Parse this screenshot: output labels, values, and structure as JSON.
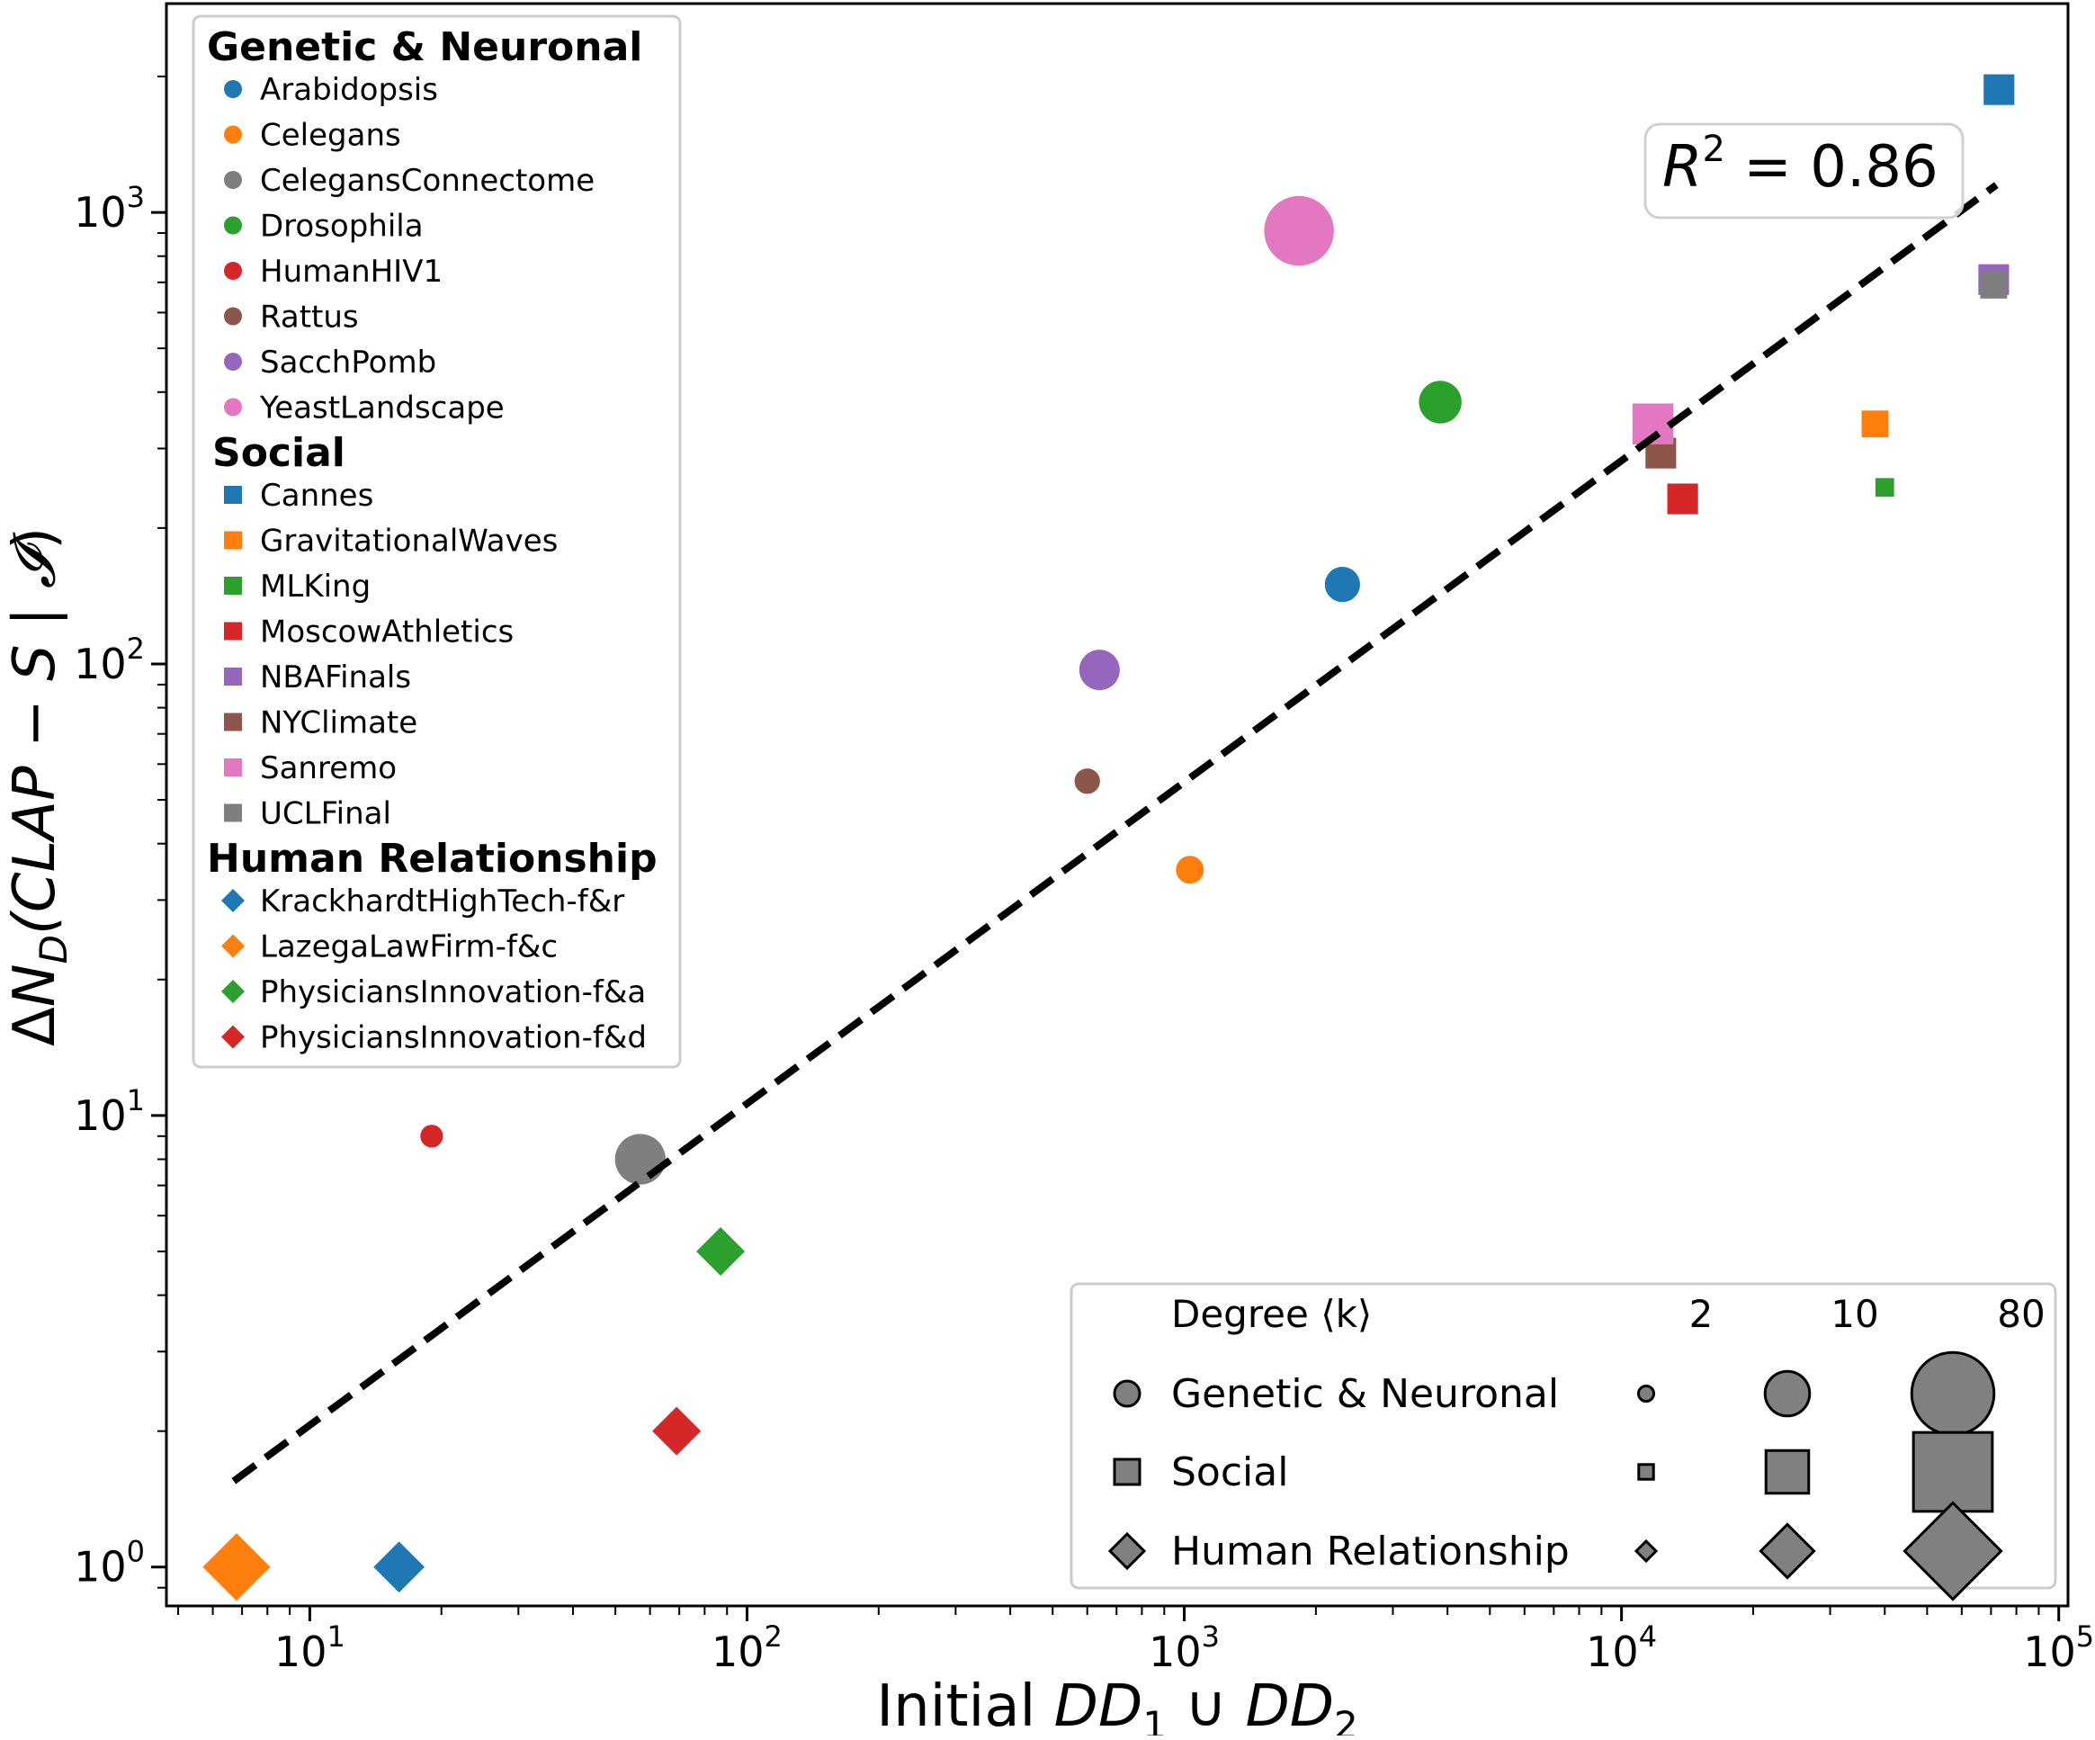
{
  "chart_data": {
    "type": "scatter",
    "xscale": "log",
    "yscale": "log",
    "xlim": [
      4.7,
      105000
    ],
    "ylim": [
      0.82,
      2900
    ],
    "xticks": [
      {
        "value": 10,
        "base": "10",
        "exp": "1"
      },
      {
        "value": 100,
        "base": "10",
        "exp": "2"
      },
      {
        "value": 1000,
        "base": "10",
        "exp": "3"
      },
      {
        "value": 10000,
        "base": "10",
        "exp": "4"
      },
      {
        "value": 100000,
        "base": "10",
        "exp": "5"
      }
    ],
    "yticks": [
      {
        "value": 1,
        "base": "10",
        "exp": "0"
      },
      {
        "value": 10,
        "base": "10",
        "exp": "1"
      },
      {
        "value": 100,
        "base": "10",
        "exp": "2"
      },
      {
        "value": 1000,
        "base": "10",
        "exp": "3"
      }
    ],
    "xlabel": {
      "pre": "Initial ",
      "a": "DD",
      "a_sub": "1",
      "mid": " ∪ ",
      "b": "DD",
      "b_sub": "2"
    },
    "ylabel": {
      "pre": "Δ",
      "n": "N",
      "n_sub": "D",
      "rest": "(CLAP − S | ",
      "cal": "𝓘",
      "close": ")"
    },
    "fit_line": {
      "x": [
        6.7,
        72000
      ],
      "y": [
        1.55,
        1150
      ],
      "style": "dashed",
      "color": "#000000"
    },
    "annotation": {
      "r": "R",
      "sup": "2",
      "text": " = 0.86"
    },
    "legend_groups": [
      {
        "title": "Genetic & Neuronal",
        "marker": "circle",
        "entries": [
          {
            "label": "Arabidopsis",
            "color": "#1f77b4"
          },
          {
            "label": "Celegans",
            "color": "#ff7f0e"
          },
          {
            "label": "CelegansConnectome",
            "color": "#7f7f7f"
          },
          {
            "label": "Drosophila",
            "color": "#2ca02c"
          },
          {
            "label": "HumanHIV1",
            "color": "#d62728"
          },
          {
            "label": "Rattus",
            "color": "#8c564b"
          },
          {
            "label": "SacchPomb",
            "color": "#9467bd"
          },
          {
            "label": "YeastLandscape",
            "color": "#e377c2"
          }
        ]
      },
      {
        "title": "Social",
        "marker": "square",
        "entries": [
          {
            "label": "Cannes",
            "color": "#1f77b4"
          },
          {
            "label": "GravitationalWaves",
            "color": "#ff7f0e"
          },
          {
            "label": "MLKing",
            "color": "#2ca02c"
          },
          {
            "label": "MoscowAthletics",
            "color": "#d62728"
          },
          {
            "label": "NBAFinals",
            "color": "#9467bd"
          },
          {
            "label": "NYClimate",
            "color": "#8c564b"
          },
          {
            "label": "Sanremo",
            "color": "#e377c2"
          },
          {
            "label": "UCLFinal",
            "color": "#7f7f7f"
          }
        ]
      },
      {
        "title": "Human Relationship",
        "marker": "diamond",
        "entries": [
          {
            "label": "KrackhardtHighTech-f&r",
            "color": "#1f77b4"
          },
          {
            "label": "LazegaLawFirm-f&c",
            "color": "#ff7f0e"
          },
          {
            "label": "PhysiciansInnovation-f&a",
            "color": "#2ca02c"
          },
          {
            "label": "PhysiciansInnovation-f&d",
            "color": "#d62728"
          }
        ]
      }
    ],
    "size_legend": {
      "title": "Degree ⟨k⟩",
      "degrees": [
        "2",
        "10",
        "80"
      ],
      "rows": [
        {
          "label": "Genetic & Neuronal",
          "marker": "circle"
        },
        {
          "label": "Social",
          "marker": "square"
        },
        {
          "label": "Human Relationship",
          "marker": "diamond"
        }
      ]
    },
    "points": [
      {
        "name": "Arabidopsis",
        "group": "Genetic & Neuronal",
        "marker": "circle",
        "color": "#1f77b4",
        "x": 2300,
        "y": 150,
        "k": 6
      },
      {
        "name": "Celegans",
        "group": "Genetic & Neuronal",
        "marker": "circle",
        "color": "#ff7f0e",
        "x": 1030,
        "y": 35,
        "k": 4
      },
      {
        "name": "CelegansConnectome",
        "group": "Genetic & Neuronal",
        "marker": "circle",
        "color": "#7f7f7f",
        "x": 57,
        "y": 8,
        "k": 14
      },
      {
        "name": "Drosophila",
        "group": "Genetic & Neuronal",
        "marker": "circle",
        "color": "#2ca02c",
        "x": 3850,
        "y": 380,
        "k": 9
      },
      {
        "name": "HumanHIV1",
        "group": "Genetic & Neuronal",
        "marker": "circle",
        "color": "#d62728",
        "x": 19,
        "y": 9,
        "k": 3
      },
      {
        "name": "Rattus",
        "group": "Genetic & Neuronal",
        "marker": "circle",
        "color": "#8c564b",
        "x": 600,
        "y": 55,
        "k": 3.5
      },
      {
        "name": "SacchPomb",
        "group": "Genetic & Neuronal",
        "marker": "circle",
        "color": "#9467bd",
        "x": 640,
        "y": 97,
        "k": 8
      },
      {
        "name": "YeastLandscape",
        "group": "Genetic & Neuronal",
        "marker": "circle",
        "color": "#e377c2",
        "x": 1830,
        "y": 910,
        "k": 40
      },
      {
        "name": "Cannes",
        "group": "Social",
        "marker": "square",
        "color": "#1f77b4",
        "x": 73000,
        "y": 1870,
        "k": 5
      },
      {
        "name": "GravitationalWaves",
        "group": "Social",
        "marker": "square",
        "color": "#ff7f0e",
        "x": 38000,
        "y": 340,
        "k": 4
      },
      {
        "name": "MLKing",
        "group": "Social",
        "marker": "square",
        "color": "#2ca02c",
        "x": 40000,
        "y": 246,
        "k": 2.5
      },
      {
        "name": "MoscowAthletics",
        "group": "Social",
        "marker": "square",
        "color": "#d62728",
        "x": 13800,
        "y": 232,
        "k": 5
      },
      {
        "name": "NBAFinals",
        "group": "Social",
        "marker": "square",
        "color": "#9467bd",
        "x": 71000,
        "y": 710,
        "k": 5
      },
      {
        "name": "NYClimate",
        "group": "Social",
        "marker": "square",
        "color": "#8c564b",
        "x": 12300,
        "y": 293,
        "k": 5
      },
      {
        "name": "Sanremo",
        "group": "Social",
        "marker": "square",
        "color": "#e377c2",
        "x": 11800,
        "y": 340,
        "k": 9
      },
      {
        "name": "UCLFinal",
        "group": "Social",
        "marker": "square",
        "color": "#7f7f7f",
        "x": 71000,
        "y": 690,
        "k": 4
      },
      {
        "name": "KrackhardtHighTech-f&r",
        "group": "Human Relationship",
        "marker": "diamond",
        "color": "#1f77b4",
        "x": 16,
        "y": 1,
        "k": 9
      },
      {
        "name": "LazegaLawFirm-f&c",
        "group": "Human Relationship",
        "marker": "diamond",
        "color": "#ff7f0e",
        "x": 6.8,
        "y": 1,
        "k": 20
      },
      {
        "name": "PhysiciansInnovation-f&a",
        "group": "Human Relationship",
        "marker": "diamond",
        "color": "#2ca02c",
        "x": 87,
        "y": 5,
        "k": 8
      },
      {
        "name": "PhysiciansInnovation-f&d",
        "group": "Human Relationship",
        "marker": "diamond",
        "color": "#d62728",
        "x": 69,
        "y": 2,
        "k": 8
      }
    ]
  }
}
